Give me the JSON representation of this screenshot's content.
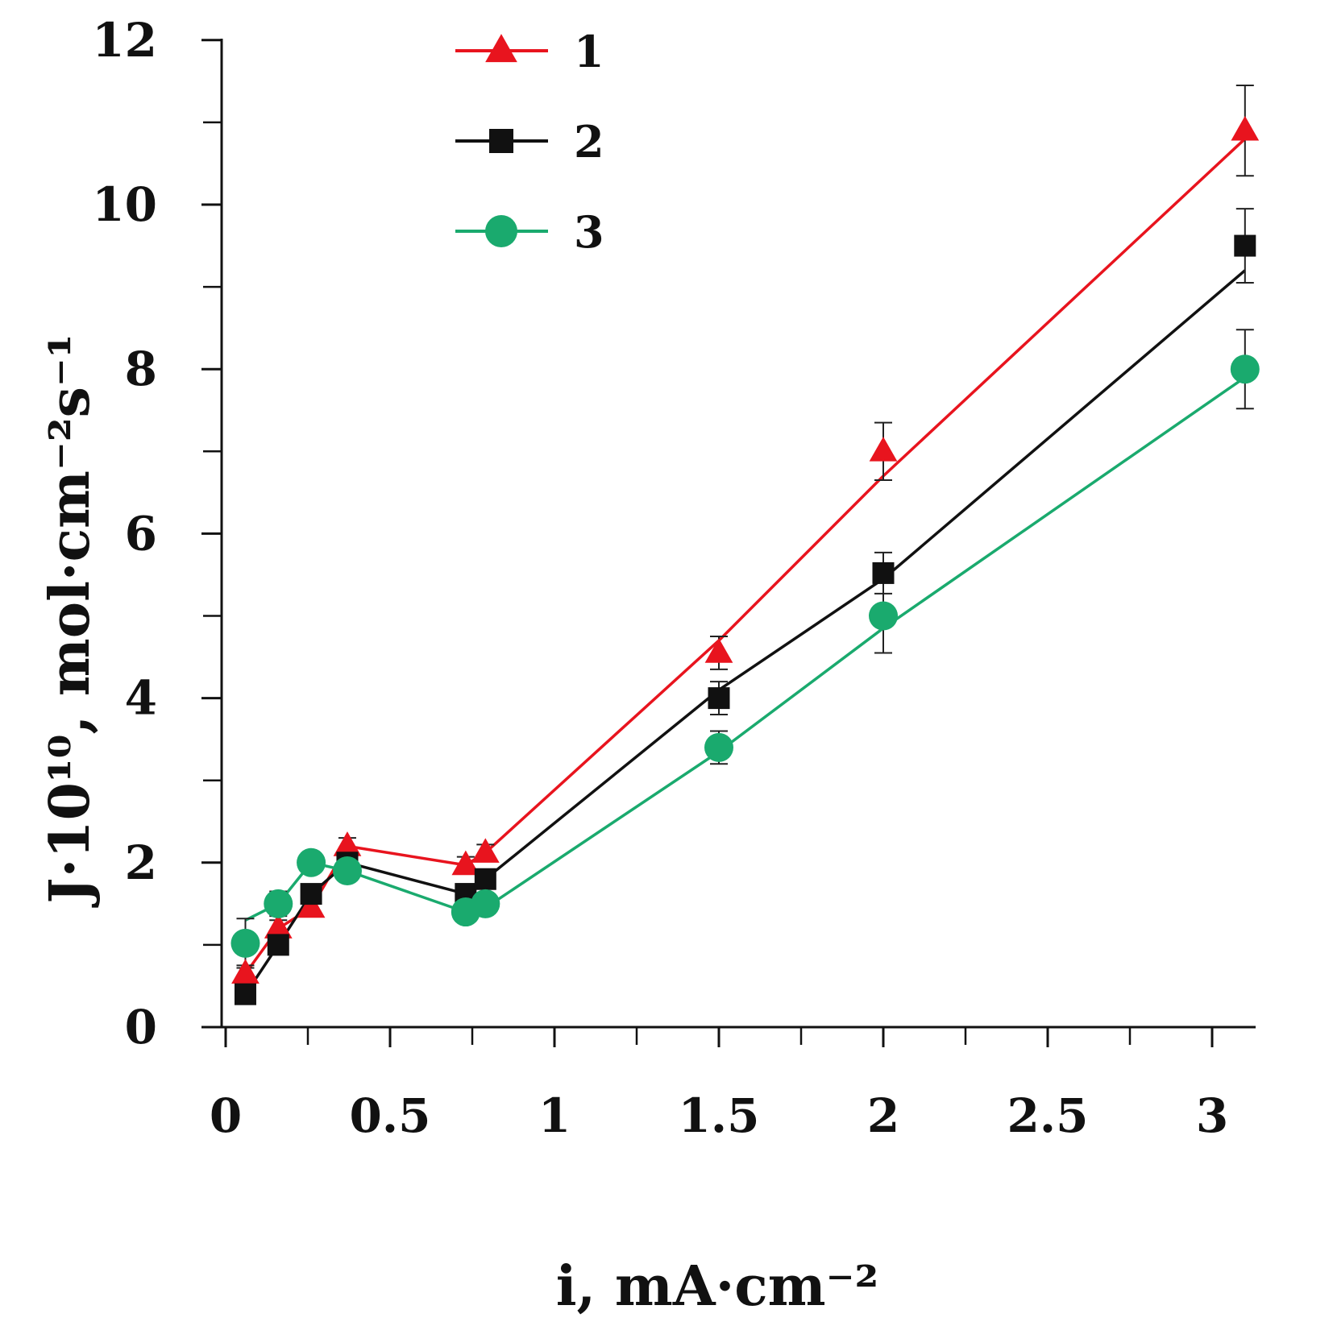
{
  "chart_data": {
    "type": "line",
    "title": "",
    "xlabel": "i, mA·cm⁻²",
    "ylabel": "J·10¹⁰, mol·cm⁻²s⁻¹",
    "xlim": [
      0,
      3.12
    ],
    "ylim": [
      0,
      12
    ],
    "x_ticks": [
      0,
      0.5,
      1,
      1.5,
      2,
      2.5,
      3
    ],
    "x_tick_labels": [
      "0",
      "0.5",
      "1",
      "1.5",
      "2",
      "2.5",
      "3"
    ],
    "x_minor_ticks": [
      0.25,
      0.75,
      1.25,
      1.75,
      2.25,
      2.75
    ],
    "y_ticks": [
      0,
      2,
      4,
      6,
      8,
      10,
      12
    ],
    "y_tick_labels": [
      "0",
      "2",
      "4",
      "6",
      "8",
      "10",
      "12"
    ],
    "y_minor_ticks": [
      1,
      3,
      5,
      7,
      9,
      11
    ],
    "grid": false,
    "legend_position": "top-center",
    "series": [
      {
        "name": "1",
        "color": "#e8141e",
        "marker": "triangle",
        "x": [
          0.06,
          0.16,
          0.26,
          0.37,
          0.73,
          0.79,
          1.5,
          2.0,
          3.1
        ],
        "y": [
          0.65,
          1.2,
          1.45,
          2.2,
          1.97,
          2.12,
          4.55,
          7.0,
          10.9
        ],
        "err": [
          0.1,
          0.1,
          0.1,
          0.1,
          0.1,
          0.1,
          0.2,
          0.35,
          0.55
        ],
        "fit": [
          [
            0.06,
            0.65
          ],
          [
            0.16,
            1.2
          ],
          [
            0.26,
            1.45
          ],
          [
            0.37,
            2.2
          ],
          [
            0.73,
            1.97
          ],
          [
            0.79,
            2.12
          ],
          [
            1.5,
            4.7
          ],
          [
            2.0,
            6.7
          ],
          [
            3.1,
            10.8
          ]
        ]
      },
      {
        "name": "2",
        "color": "#111111",
        "marker": "square",
        "x": [
          0.06,
          0.16,
          0.26,
          0.37,
          0.73,
          0.79,
          1.5,
          2.0,
          3.1
        ],
        "y": [
          0.4,
          1.0,
          1.62,
          2.0,
          1.62,
          1.8,
          4.0,
          5.52,
          9.5
        ],
        "err": [
          0.1,
          0.1,
          0.1,
          0.1,
          0.12,
          0.12,
          0.2,
          0.25,
          0.45
        ],
        "fit": [
          [
            0.06,
            0.4
          ],
          [
            0.16,
            1.0
          ],
          [
            0.26,
            1.62
          ],
          [
            0.37,
            2.0
          ],
          [
            0.73,
            1.62
          ],
          [
            0.79,
            1.8
          ],
          [
            1.5,
            4.1
          ],
          [
            2.0,
            5.45
          ],
          [
            3.1,
            9.2
          ]
        ]
      },
      {
        "name": "3",
        "color": "#1aaa6e",
        "marker": "circle",
        "x": [
          0.06,
          0.16,
          0.26,
          0.37,
          0.73,
          0.79,
          1.5,
          2.0,
          3.1
        ],
        "y": [
          1.02,
          1.5,
          2.0,
          1.9,
          1.4,
          1.5,
          3.4,
          5.0,
          8.0
        ],
        "err": [
          0.3,
          0.15,
          0.12,
          0.1,
          0.1,
          0.1,
          0.2,
          0.45,
          0.48
        ],
        "fit": [
          [
            0.06,
            1.3
          ],
          [
            0.16,
            1.5
          ],
          [
            0.26,
            2.0
          ],
          [
            0.37,
            1.9
          ],
          [
            0.73,
            1.4
          ],
          [
            0.79,
            1.45
          ],
          [
            1.5,
            3.35
          ],
          [
            2.0,
            4.85
          ],
          [
            3.1,
            7.9
          ]
        ]
      }
    ]
  }
}
